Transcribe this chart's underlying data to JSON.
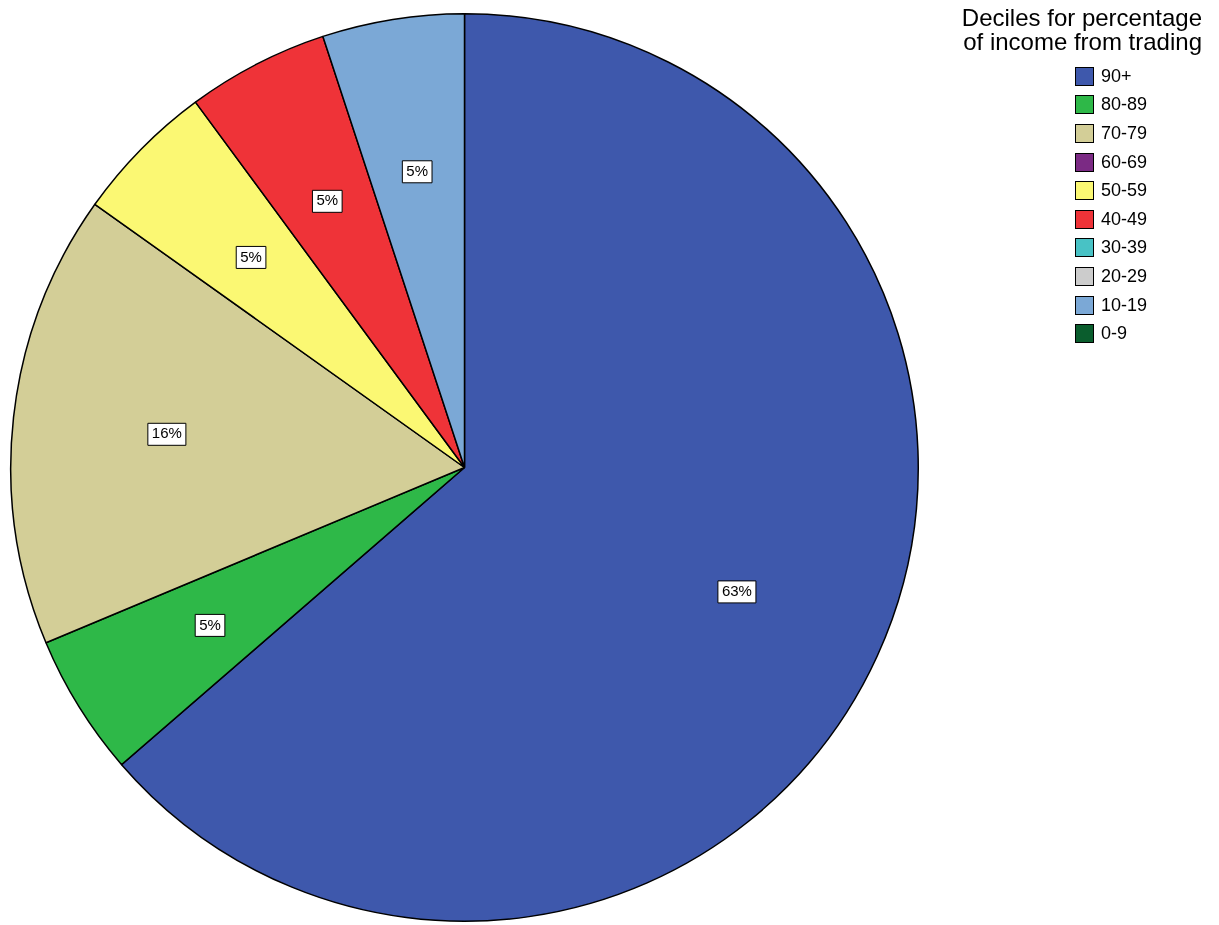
{
  "chart_data": {
    "type": "pie",
    "legend_title": "Deciles for percentage\nof income from trading",
    "legend": "top right",
    "categories": [
      "90+",
      "80-89",
      "70-79",
      "60-69",
      "50-59",
      "40-49",
      "30-39",
      "20-29",
      "10-19",
      "0-9"
    ],
    "values": [
      63,
      5,
      16,
      0,
      5,
      5,
      0,
      0,
      5,
      0
    ],
    "value_labels": [
      "63%",
      "5%",
      "16%",
      null,
      "5%",
      "5%",
      null,
      null,
      "5%",
      null
    ],
    "colors": [
      "#3e58ac",
      "#2eb848",
      "#d3ce97",
      "#7b2a84",
      "#fbf873",
      "#ef3338",
      "#48c2c5",
      "#cccccc",
      "#7ba8d6",
      "#0a5d2d"
    ]
  }
}
